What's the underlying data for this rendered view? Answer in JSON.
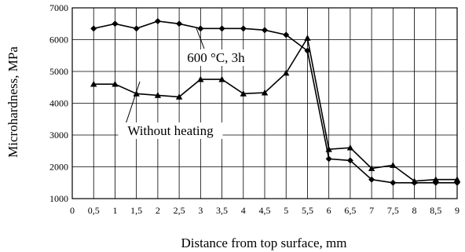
{
  "chart_data": {
    "type": "line",
    "xlabel": "Distance from top surface, mm",
    "ylabel": "Microhardness, MPa",
    "xlim": [
      0,
      9
    ],
    "ylim": [
      1000,
      7000
    ],
    "x_ticks": [
      "0",
      "0,5",
      "1",
      "1,5",
      "2",
      "2,5",
      "3",
      "3,5",
      "4",
      "4,5",
      "5",
      "5,5",
      "6",
      "6,5",
      "7",
      "7,5",
      "8",
      "8,5",
      "9"
    ],
    "y_ticks": [
      "1000",
      "2000",
      "3000",
      "4000",
      "5000",
      "6000",
      "7000"
    ],
    "grid": true,
    "series": [
      {
        "name": "600 °C, 3h",
        "marker": "diamond",
        "x": [
          0.5,
          1,
          1.5,
          2,
          2.5,
          3,
          3.5,
          4,
          4.5,
          5,
          5.5,
          6,
          6.5,
          7,
          7.5,
          8,
          8.5,
          9
        ],
        "y": [
          6350,
          6500,
          6350,
          6580,
          6500,
          6350,
          6350,
          6350,
          6300,
          6150,
          5650,
          2250,
          2200,
          1600,
          1500,
          1500,
          1500,
          1500
        ]
      },
      {
        "name": "Without heating",
        "marker": "triangle",
        "x": [
          0.5,
          1,
          1.5,
          2,
          2.5,
          3,
          3.5,
          4,
          4.5,
          5,
          5.5,
          6,
          6.5,
          7,
          7.5,
          8,
          8.5,
          9
        ],
        "y": [
          4600,
          4600,
          4300,
          4250,
          4200,
          4750,
          4750,
          4300,
          4330,
          4950,
          6050,
          2550,
          2600,
          1950,
          2050,
          1550,
          1600,
          1600
        ]
      }
    ],
    "annotations": [
      {
        "text": "600 °C, 3h",
        "series": 0,
        "at_x": 3.0
      },
      {
        "text": "Without heating",
        "series": 1,
        "at_x": 2.0
      }
    ]
  }
}
